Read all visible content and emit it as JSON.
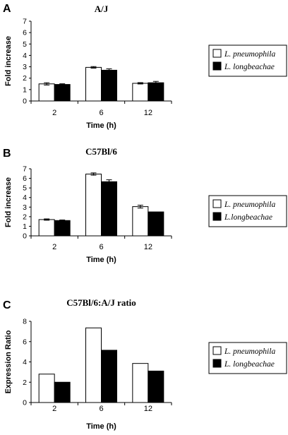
{
  "colors": {
    "series_1": "#ffffff",
    "series_2": "#000000",
    "stroke": "#000000"
  },
  "chart_data": [
    {
      "panel": "A",
      "type": "bar",
      "title": "A/J",
      "xlabel": "Time (h)",
      "ylabel": "Fold increase",
      "categories": [
        "2",
        "6",
        "12"
      ],
      "ylim": [
        0,
        7
      ],
      "yticks": [
        0,
        1,
        2,
        3,
        4,
        5,
        6,
        7
      ],
      "grid": false,
      "legend_position": "right",
      "series": [
        {
          "name": "L. pneumophila",
          "values": [
            1.5,
            2.95,
            1.55
          ],
          "errors": [
            0.1,
            0.07,
            0.06
          ]
        },
        {
          "name": "L. longbeachae",
          "values": [
            1.45,
            2.7,
            1.6
          ],
          "errors": [
            0.06,
            0.12,
            0.12
          ]
        }
      ]
    },
    {
      "panel": "B",
      "type": "bar",
      "title": "C57Bl/6",
      "xlabel": "Time (h)",
      "ylabel": "Fold increase",
      "categories": [
        "2",
        "6",
        "12"
      ],
      "ylim": [
        0,
        7
      ],
      "yticks": [
        0,
        1,
        2,
        3,
        4,
        5,
        6,
        7
      ],
      "grid": false,
      "legend_position": "right",
      "series": [
        {
          "name": "L. pneumophila",
          "values": [
            1.7,
            6.45,
            3.05
          ],
          "errors": [
            0.07,
            0.12,
            0.15
          ]
        },
        {
          "name": "L.longbeachae",
          "values": [
            1.6,
            5.65,
            2.5
          ],
          "errors": [
            0.06,
            0.2,
            0
          ]
        }
      ]
    },
    {
      "panel": "C",
      "type": "bar",
      "title": "C57Bl/6:A/J ratio",
      "xlabel": "Time (h)",
      "ylabel": "Expression Ratio",
      "categories": [
        "2",
        "6",
        "12"
      ],
      "ylim": [
        0,
        8
      ],
      "yticks": [
        0,
        2,
        4,
        6,
        8
      ],
      "grid": false,
      "legend_position": "right",
      "series": [
        {
          "name": "L. pneumophila",
          "values": [
            2.8,
            7.35,
            3.85
          ],
          "errors": [
            0,
            0,
            0
          ]
        },
        {
          "name": "L. longbeachae",
          "values": [
            2.0,
            5.15,
            3.1
          ],
          "errors": [
            0,
            0,
            0
          ]
        }
      ]
    }
  ]
}
